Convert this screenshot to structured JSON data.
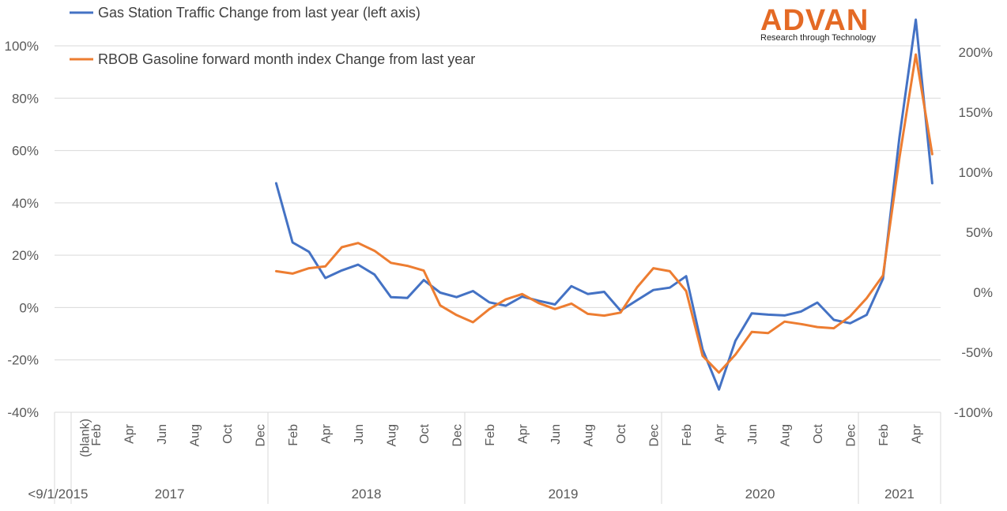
{
  "logo": {
    "brand": "ADVAN",
    "tagline": "Research through Technology",
    "color": "#e46a25"
  },
  "chart_data": {
    "type": "line",
    "legend_placement": "top-left",
    "grid": true,
    "left_axis": {
      "ticks": [
        "100%",
        "80%",
        "60%",
        "40%",
        "20%",
        "0%",
        "-20%",
        "-40%"
      ],
      "range": [
        -40,
        110
      ]
    },
    "right_axis": {
      "ticks": [
        "200%",
        "150%",
        "100%",
        "50%",
        "0%",
        "-50%",
        "-100%"
      ],
      "range": [
        -100,
        230
      ]
    },
    "month_labels": [
      {
        "label": "(blank)",
        "slot": 0.3
      },
      {
        "label": "Feb",
        "slot": 1
      },
      {
        "label": "Apr",
        "slot": 3
      },
      {
        "label": "Jun",
        "slot": 5
      },
      {
        "label": "Aug",
        "slot": 7
      },
      {
        "label": "Oct",
        "slot": 9
      },
      {
        "label": "Dec",
        "slot": 11
      },
      {
        "label": "Feb",
        "slot": 13
      },
      {
        "label": "Apr",
        "slot": 15
      },
      {
        "label": "Jun",
        "slot": 17
      },
      {
        "label": "Aug",
        "slot": 19
      },
      {
        "label": "Oct",
        "slot": 21
      },
      {
        "label": "Dec",
        "slot": 23
      },
      {
        "label": "Feb",
        "slot": 25
      },
      {
        "label": "Apr",
        "slot": 27
      },
      {
        "label": "Jun",
        "slot": 29
      },
      {
        "label": "Aug",
        "slot": 31
      },
      {
        "label": "Oct",
        "slot": 33
      },
      {
        "label": "Dec",
        "slot": 35
      },
      {
        "label": "Feb",
        "slot": 37
      },
      {
        "label": "Apr",
        "slot": 39
      },
      {
        "label": "Jun",
        "slot": 41
      },
      {
        "label": "Aug",
        "slot": 43
      },
      {
        "label": "Oct",
        "slot": 45
      },
      {
        "label": "Dec",
        "slot": 47
      },
      {
        "label": "Feb",
        "slot": 49
      },
      {
        "label": "Apr",
        "slot": 51
      }
    ],
    "year_labels": [
      {
        "label": "<9/1/2015",
        "center": -0.8
      },
      {
        "label": "2017",
        "center": 6
      },
      {
        "label": "2018",
        "center": 18
      },
      {
        "label": "2019",
        "center": 30
      },
      {
        "label": "2020",
        "center": 42
      },
      {
        "label": "2021",
        "center": 50.5
      }
    ],
    "year_dividers": [
      0,
      12,
      24,
      36,
      48
    ],
    "series": [
      {
        "name": "Gas Station Traffic Change from last year (left axis)",
        "axis": "left",
        "color": "#4472c4",
        "start_slot": 12,
        "values": [
          47.5,
          24.9,
          21.3,
          11.3,
          14.2,
          16.4,
          12.6,
          4.0,
          3.7,
          10.5,
          5.7,
          4.0,
          6.3,
          2.0,
          0.7,
          4.2,
          2.6,
          1.2,
          8.2,
          5.2,
          6.0,
          -1.2,
          2.8,
          6.7,
          7.6,
          12.0,
          -16.0,
          -31.3,
          -12.7,
          -2.2,
          -2.7,
          -3.0,
          -1.5,
          1.9,
          -4.7,
          -6.0,
          -2.8,
          11.0,
          65.0,
          110.0,
          47.5
        ]
      },
      {
        "name": "RBOB Gasoline forward month index Change from last year",
        "axis": "right",
        "color": "#ed7d31",
        "start_slot": 12,
        "values": [
          17.5,
          15.5,
          20.0,
          21.5,
          37.5,
          41.0,
          34.5,
          24.5,
          22.0,
          18.0,
          -11.0,
          -19.0,
          -25.0,
          -14.0,
          -6.0,
          -1.5,
          -9.0,
          -14.0,
          -9.5,
          -18.0,
          -19.5,
          -17.0,
          4.0,
          20.0,
          17.5,
          1.0,
          -53.0,
          -67.0,
          -52.0,
          -33.0,
          -34.0,
          -24.5,
          -26.5,
          -29.0,
          -30.0,
          -20.0,
          -5.0,
          14.0,
          112.0,
          198.0,
          115.0
        ]
      }
    ]
  }
}
